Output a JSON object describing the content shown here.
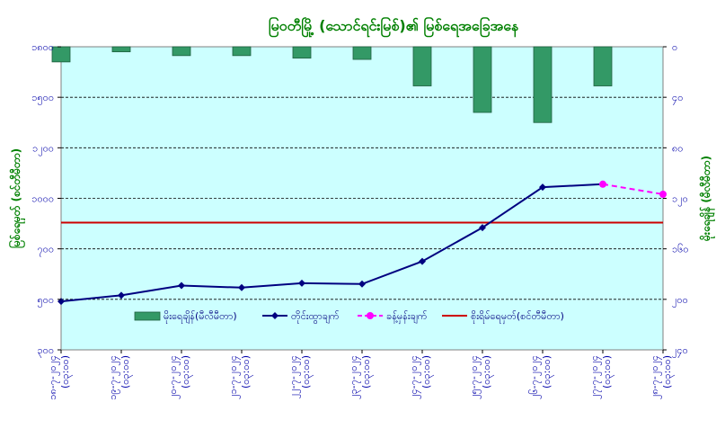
{
  "chart_data": {
    "type": "bar+line",
    "title": "မြဝတီမြို့ (သောင်ရင်းမြစ်)၏ မြစ်ရေအခြေအနေ",
    "left_axis": {
      "label": "မြစ်ရေမှတ် (စင်တီမီတာ)",
      "range": [
        300,
        1800
      ],
      "ticks": [
        300,
        500,
        700,
        1000,
        1200,
        1500,
        1800
      ],
      "tick_labels": [
        "၃၀၀",
        "၅၀၀",
        "၇၀၀",
        "၁၀၀၀",
        "၁၂၀၀",
        "၁၅၀၀",
        "၁၈၀၀"
      ]
    },
    "right_axis": {
      "label": "မိုးရေချိန် (မီလီမီတာ)",
      "range": [
        0,
        240
      ],
      "inverted": true,
      "ticks": [
        0,
        40,
        80,
        120,
        160,
        200,
        240
      ],
      "tick_labels": [
        "၀",
        "၄၀",
        "၈၀",
        "၁၂၀",
        "၁၆၀",
        "၂၀၀",
        "၂၄၀"
      ]
    },
    "categories": [
      [
        "၁၈-၇-၂၀၂၄",
        "(၀၃:၀၀)"
      ],
      [
        "၁၉-၇-၂၀၂၄",
        "(၀၃:၀၀)"
      ],
      [
        "၂၀-၇-၂၀၂၄",
        "(၀၃:၀၀)"
      ],
      [
        "၂၁-၇-၂၀၂၄",
        "(၀၃:၀၀)"
      ],
      [
        "၂၂-၇-၂၀၂၄",
        "(၀၃:၀၀)"
      ],
      [
        "၂၃-၇-၂၀၂၄",
        "(၀၃:၀၀)"
      ],
      [
        "၂၄-၇-၂၀၂၄",
        "(၀၃:၀၀)"
      ],
      [
        "၂၅-၇-၂၀၂၄",
        "(၀၃:၀၀)"
      ],
      [
        "၂၆-၇-၂၀၂၄",
        "(၀၃:၀၀)"
      ],
      [
        "၂၇-၇-၂၀၂၄",
        "(၀၃:၀၀)"
      ],
      [
        "၂၈-၇-၂၀၂၄",
        "(၀၃:၀၀)"
      ]
    ],
    "series": [
      {
        "name": "မိုးရေချိန်(မီလီမီတာ)",
        "kind": "bar",
        "axis": "right",
        "color": "#339966",
        "values": [
          12,
          4,
          7,
          7,
          9,
          10,
          31,
          52,
          60,
          31,
          null
        ]
      },
      {
        "name": "တိုင်းထွာချက်",
        "kind": "line",
        "axis": "left",
        "color": "#000080",
        "values": [
          540,
          570,
          618,
          608,
          630,
          626,
          738,
          905,
          1105,
          1120,
          null
        ]
      },
      {
        "name": "ခန့်မှန်းချက်",
        "kind": "line-dashed",
        "axis": "left",
        "color": "#ff00ff",
        "values": [
          null,
          null,
          null,
          null,
          null,
          null,
          null,
          null,
          null,
          1120,
          1070
        ]
      },
      {
        "name": "စိုးရိမ်ရေမှတ်(စင်တီမီတာ)",
        "kind": "hline",
        "axis": "left",
        "color": "#cc0000",
        "value": 930
      }
    ],
    "grid": true,
    "legend_position": "bottom-inside"
  }
}
